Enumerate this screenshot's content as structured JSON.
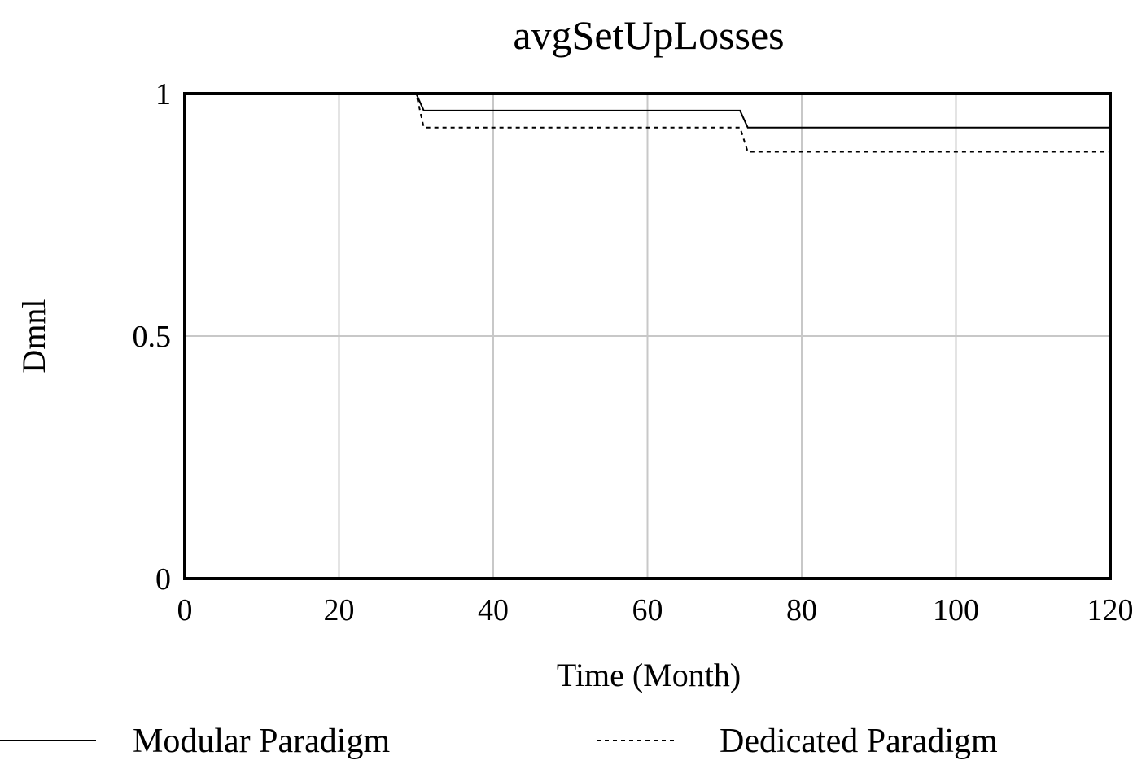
{
  "chart_data": {
    "type": "line",
    "title": "avgSetUpLosses",
    "xlabel": "Time (Month)",
    "ylabel": "Dmnl",
    "xlim": [
      0,
      120
    ],
    "ylim": [
      0,
      1
    ],
    "x_ticks": [
      "0",
      "20",
      "40",
      "60",
      "80",
      "100",
      "120"
    ],
    "y_ticks": [
      "0",
      "0.5",
      "1"
    ],
    "grid": true,
    "legend_position": "bottom",
    "series": [
      {
        "name": "Modular Paradigm",
        "style": "solid",
        "color": "#000000",
        "points": [
          [
            0,
            1.0
          ],
          [
            30,
            1.0
          ],
          [
            31,
            0.965
          ],
          [
            72,
            0.965
          ],
          [
            73,
            0.93
          ],
          [
            120,
            0.93
          ]
        ]
      },
      {
        "name": "Dedicated Paradigm",
        "style": "dotted",
        "color": "#000000",
        "points": [
          [
            0,
            1.0
          ],
          [
            30,
            1.0
          ],
          [
            31,
            0.93
          ],
          [
            72,
            0.93
          ],
          [
            73,
            0.88
          ],
          [
            120,
            0.88
          ]
        ]
      }
    ]
  }
}
